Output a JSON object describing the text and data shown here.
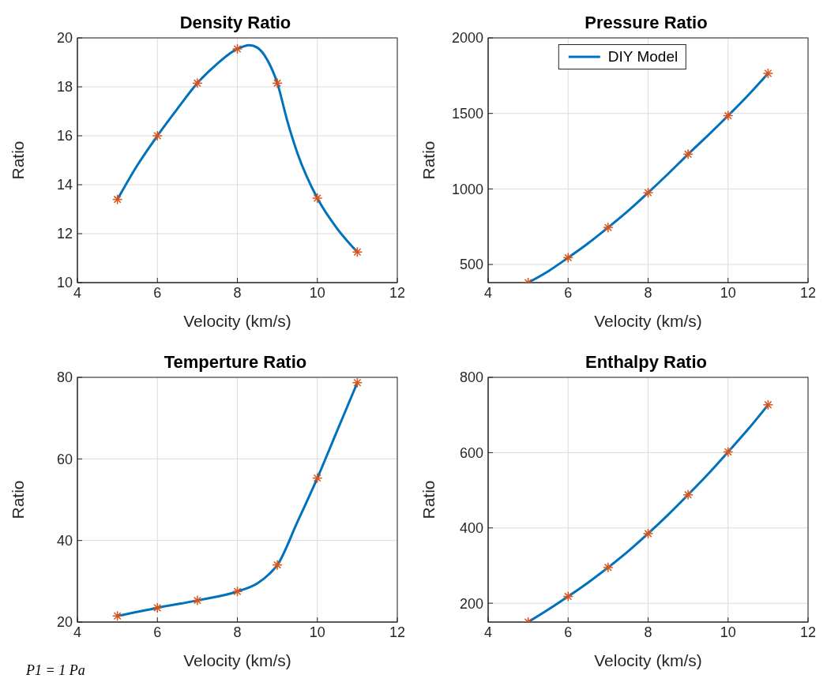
{
  "chart_data": [
    {
      "type": "line",
      "title": "Density Ratio",
      "xlabel": "Velocity (km/s)",
      "ylabel": "Ratio",
      "xlim": [
        4,
        12
      ],
      "xticks": [
        4,
        6,
        8,
        10,
        12
      ],
      "ylim": [
        10,
        20
      ],
      "yticks": [
        10,
        12,
        14,
        16,
        18,
        20
      ],
      "grid": true,
      "series": [
        {
          "type": "line",
          "color": "#0072bd",
          "x": [
            5,
            5.5,
            6,
            6.5,
            7,
            7.5,
            8,
            8.3,
            8.5,
            8.75,
            9,
            9.25,
            9.5,
            10,
            10.5,
            11
          ],
          "values": [
            13.4,
            14.8,
            16.0,
            17.1,
            18.15,
            18.95,
            19.55,
            19.7,
            19.6,
            19.1,
            18.15,
            16.6,
            15.3,
            13.45,
            12.2,
            11.25
          ]
        },
        {
          "type": "scatter",
          "color": "#d95319",
          "marker": "cross",
          "x": [
            5,
            6,
            7,
            8,
            9,
            10,
            11
          ],
          "values": [
            13.4,
            16.0,
            18.15,
            19.55,
            18.15,
            13.45,
            11.25
          ]
        }
      ]
    },
    {
      "type": "line",
      "title": "Pressure Ratio",
      "xlabel": "Velocity (km/s)",
      "ylabel": "Ratio",
      "xlim": [
        4,
        12
      ],
      "xticks": [
        4,
        6,
        8,
        10,
        12
      ],
      "ylim": [
        380,
        2000
      ],
      "yticks": [
        500,
        1000,
        1500,
        2000
      ],
      "grid": true,
      "legend": "top",
      "series": [
        {
          "type": "line",
          "name": "DIY Model",
          "color": "#0072bd",
          "x": [
            5,
            5.5,
            6,
            6.5,
            7,
            7.5,
            8,
            8.5,
            9,
            9.5,
            10,
            10.5,
            11
          ],
          "values": [
            380,
            455,
            545,
            640,
            745,
            855,
            975,
            1100,
            1230,
            1355,
            1485,
            1620,
            1765
          ]
        },
        {
          "type": "scatter",
          "color": "#d95319",
          "marker": "cross",
          "x": [
            5,
            6,
            7,
            8,
            9,
            10,
            11
          ],
          "values": [
            380,
            545,
            745,
            975,
            1230,
            1485,
            1765
          ]
        }
      ]
    },
    {
      "type": "line",
      "title": "Temperture Ratio",
      "xlabel": "Velocity (km/s)",
      "ylabel": "Ratio",
      "xlim": [
        4,
        12
      ],
      "xticks": [
        4,
        6,
        8,
        10,
        12
      ],
      "ylim": [
        20,
        80
      ],
      "yticks": [
        20,
        40,
        60,
        80
      ],
      "grid": true,
      "annotations": [
        "P1 = 1 Pa"
      ],
      "series": [
        {
          "type": "line",
          "color": "#0072bd",
          "x": [
            5,
            6,
            7,
            8,
            8.5,
            8.8,
            9,
            9.5,
            10,
            10.5,
            11
          ],
          "values": [
            21.5,
            23.5,
            25.3,
            27.5,
            29.5,
            31.8,
            34,
            44.5,
            55.3,
            67,
            78.7
          ]
        },
        {
          "type": "scatter",
          "color": "#d95319",
          "marker": "cross",
          "x": [
            5,
            6,
            7,
            8,
            9,
            10,
            11
          ],
          "values": [
            21.5,
            23.5,
            25.3,
            27.5,
            34,
            55.3,
            78.7
          ]
        }
      ]
    },
    {
      "type": "line",
      "title": "Enthalpy Ratio",
      "xlabel": "Velocity (km/s)",
      "ylabel": "Ratio",
      "xlim": [
        4,
        12
      ],
      "xticks": [
        4,
        6,
        8,
        10,
        12
      ],
      "ylim": [
        150,
        800
      ],
      "yticks": [
        200,
        400,
        600,
        800
      ],
      "grid": true,
      "series": [
        {
          "type": "line",
          "color": "#0072bd",
          "x": [
            5,
            5.5,
            6,
            6.5,
            7,
            7.5,
            8,
            8.5,
            9,
            9.5,
            10,
            10.5,
            11
          ],
          "values": [
            150,
            183,
            218,
            255,
            295,
            338,
            385,
            435,
            488,
            543,
            602,
            662,
            727
          ]
        },
        {
          "type": "scatter",
          "color": "#d95319",
          "marker": "cross",
          "x": [
            5,
            6,
            7,
            8,
            9,
            10,
            11
          ],
          "values": [
            150,
            218,
            295,
            385,
            488,
            602,
            727
          ]
        }
      ]
    }
  ]
}
